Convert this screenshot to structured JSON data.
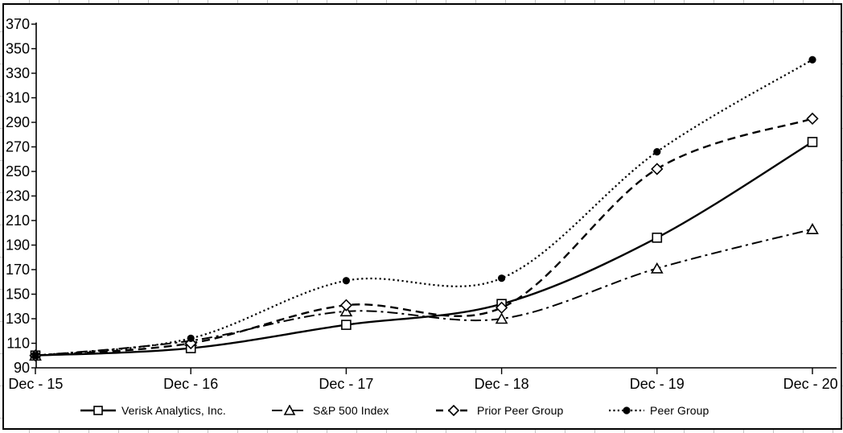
{
  "chart_data": {
    "type": "line",
    "title": "",
    "categories": [
      "Dec - 15",
      "Dec - 16",
      "Dec - 17",
      "Dec - 18",
      "Dec - 19",
      "Dec - 20"
    ],
    "series": [
      {
        "name": "Verisk Analytics, Inc.",
        "line_style": "solid",
        "marker": "square-open",
        "values": [
          100,
          106,
          125,
          142,
          196,
          274
        ]
      },
      {
        "name": "S&P 500 Index",
        "line_style": "dash-dot",
        "marker": "triangle-open",
        "values": [
          100,
          112,
          136,
          130,
          171,
          203
        ]
      },
      {
        "name": "Prior Peer Group",
        "line_style": "dashed",
        "marker": "diamond-open",
        "values": [
          100,
          110,
          141,
          139,
          252,
          293
        ]
      },
      {
        "name": "Peer Group",
        "line_style": "dotted",
        "marker": "circle-filled",
        "values": [
          100,
          114,
          161,
          163,
          266,
          341
        ]
      }
    ],
    "y_axis": {
      "min": 90,
      "max": 370,
      "step": 20,
      "ticks": [
        90,
        110,
        130,
        150,
        170,
        190,
        210,
        230,
        250,
        270,
        290,
        310,
        330,
        350,
        370
      ]
    },
    "x_axis": {
      "ticks_at_categories": true
    },
    "legend_position": "bottom",
    "grid": false,
    "line_color": "#000000",
    "background_color": "#ffffff"
  }
}
